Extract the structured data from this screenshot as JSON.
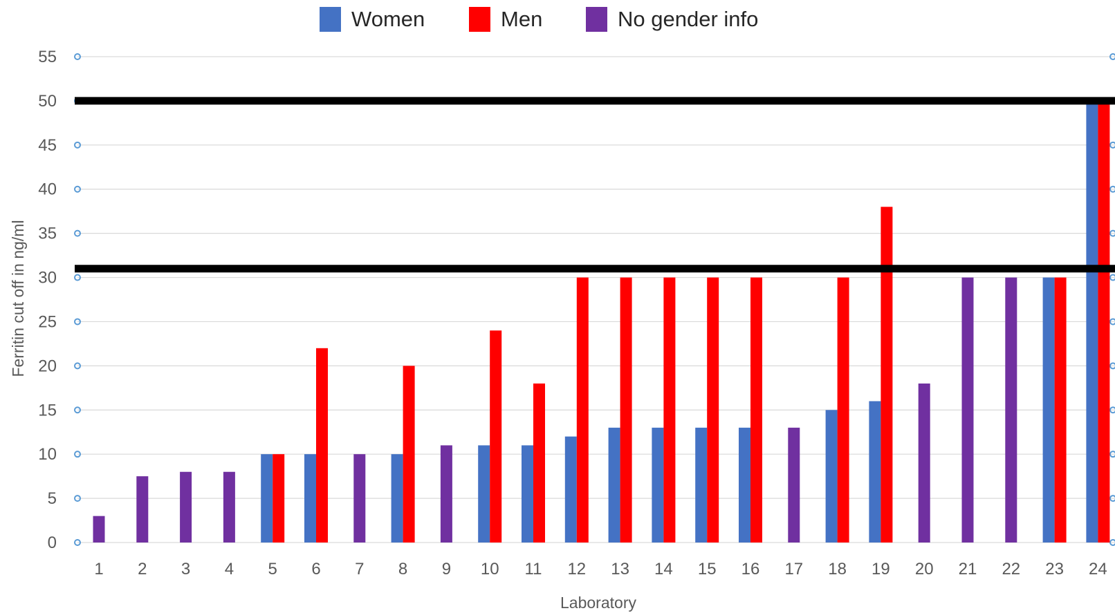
{
  "chart_data": {
    "type": "bar",
    "categories": [
      "1",
      "2",
      "3",
      "4",
      "5",
      "6",
      "7",
      "8",
      "9",
      "10",
      "11",
      "12",
      "13",
      "14",
      "15",
      "16",
      "17",
      "18",
      "19",
      "20",
      "21",
      "22",
      "23",
      "24"
    ],
    "series": [
      {
        "name": "Women",
        "color": "#4472c4",
        "values": [
          null,
          null,
          null,
          null,
          10,
          10,
          null,
          10,
          null,
          11,
          11,
          12,
          13,
          13,
          13,
          13,
          null,
          15,
          16,
          null,
          null,
          null,
          30,
          50
        ]
      },
      {
        "name": "Men",
        "color": "#ff0000",
        "values": [
          null,
          null,
          null,
          null,
          10,
          22,
          null,
          20,
          null,
          24,
          18,
          30,
          30,
          30,
          30,
          30,
          null,
          30,
          38,
          null,
          null,
          null,
          30,
          50
        ]
      },
      {
        "name": "No gender info",
        "color": "#7030a0",
        "values": [
          3,
          7.5,
          8,
          8,
          null,
          null,
          10,
          null,
          11,
          null,
          null,
          null,
          null,
          null,
          null,
          null,
          13,
          null,
          null,
          18,
          30,
          30,
          null,
          null
        ]
      }
    ],
    "xlabel": "Laboratory",
    "ylabel": "Ferritin cut off  in ng/ml",
    "ylim": [
      0,
      55
    ],
    "yticks": [
      0,
      5,
      10,
      15,
      20,
      25,
      30,
      35,
      40,
      45,
      50,
      55
    ],
    "reference_lines": [
      50,
      31
    ],
    "reference_line_color": "#000000",
    "grid": true,
    "legend_position": "top"
  }
}
